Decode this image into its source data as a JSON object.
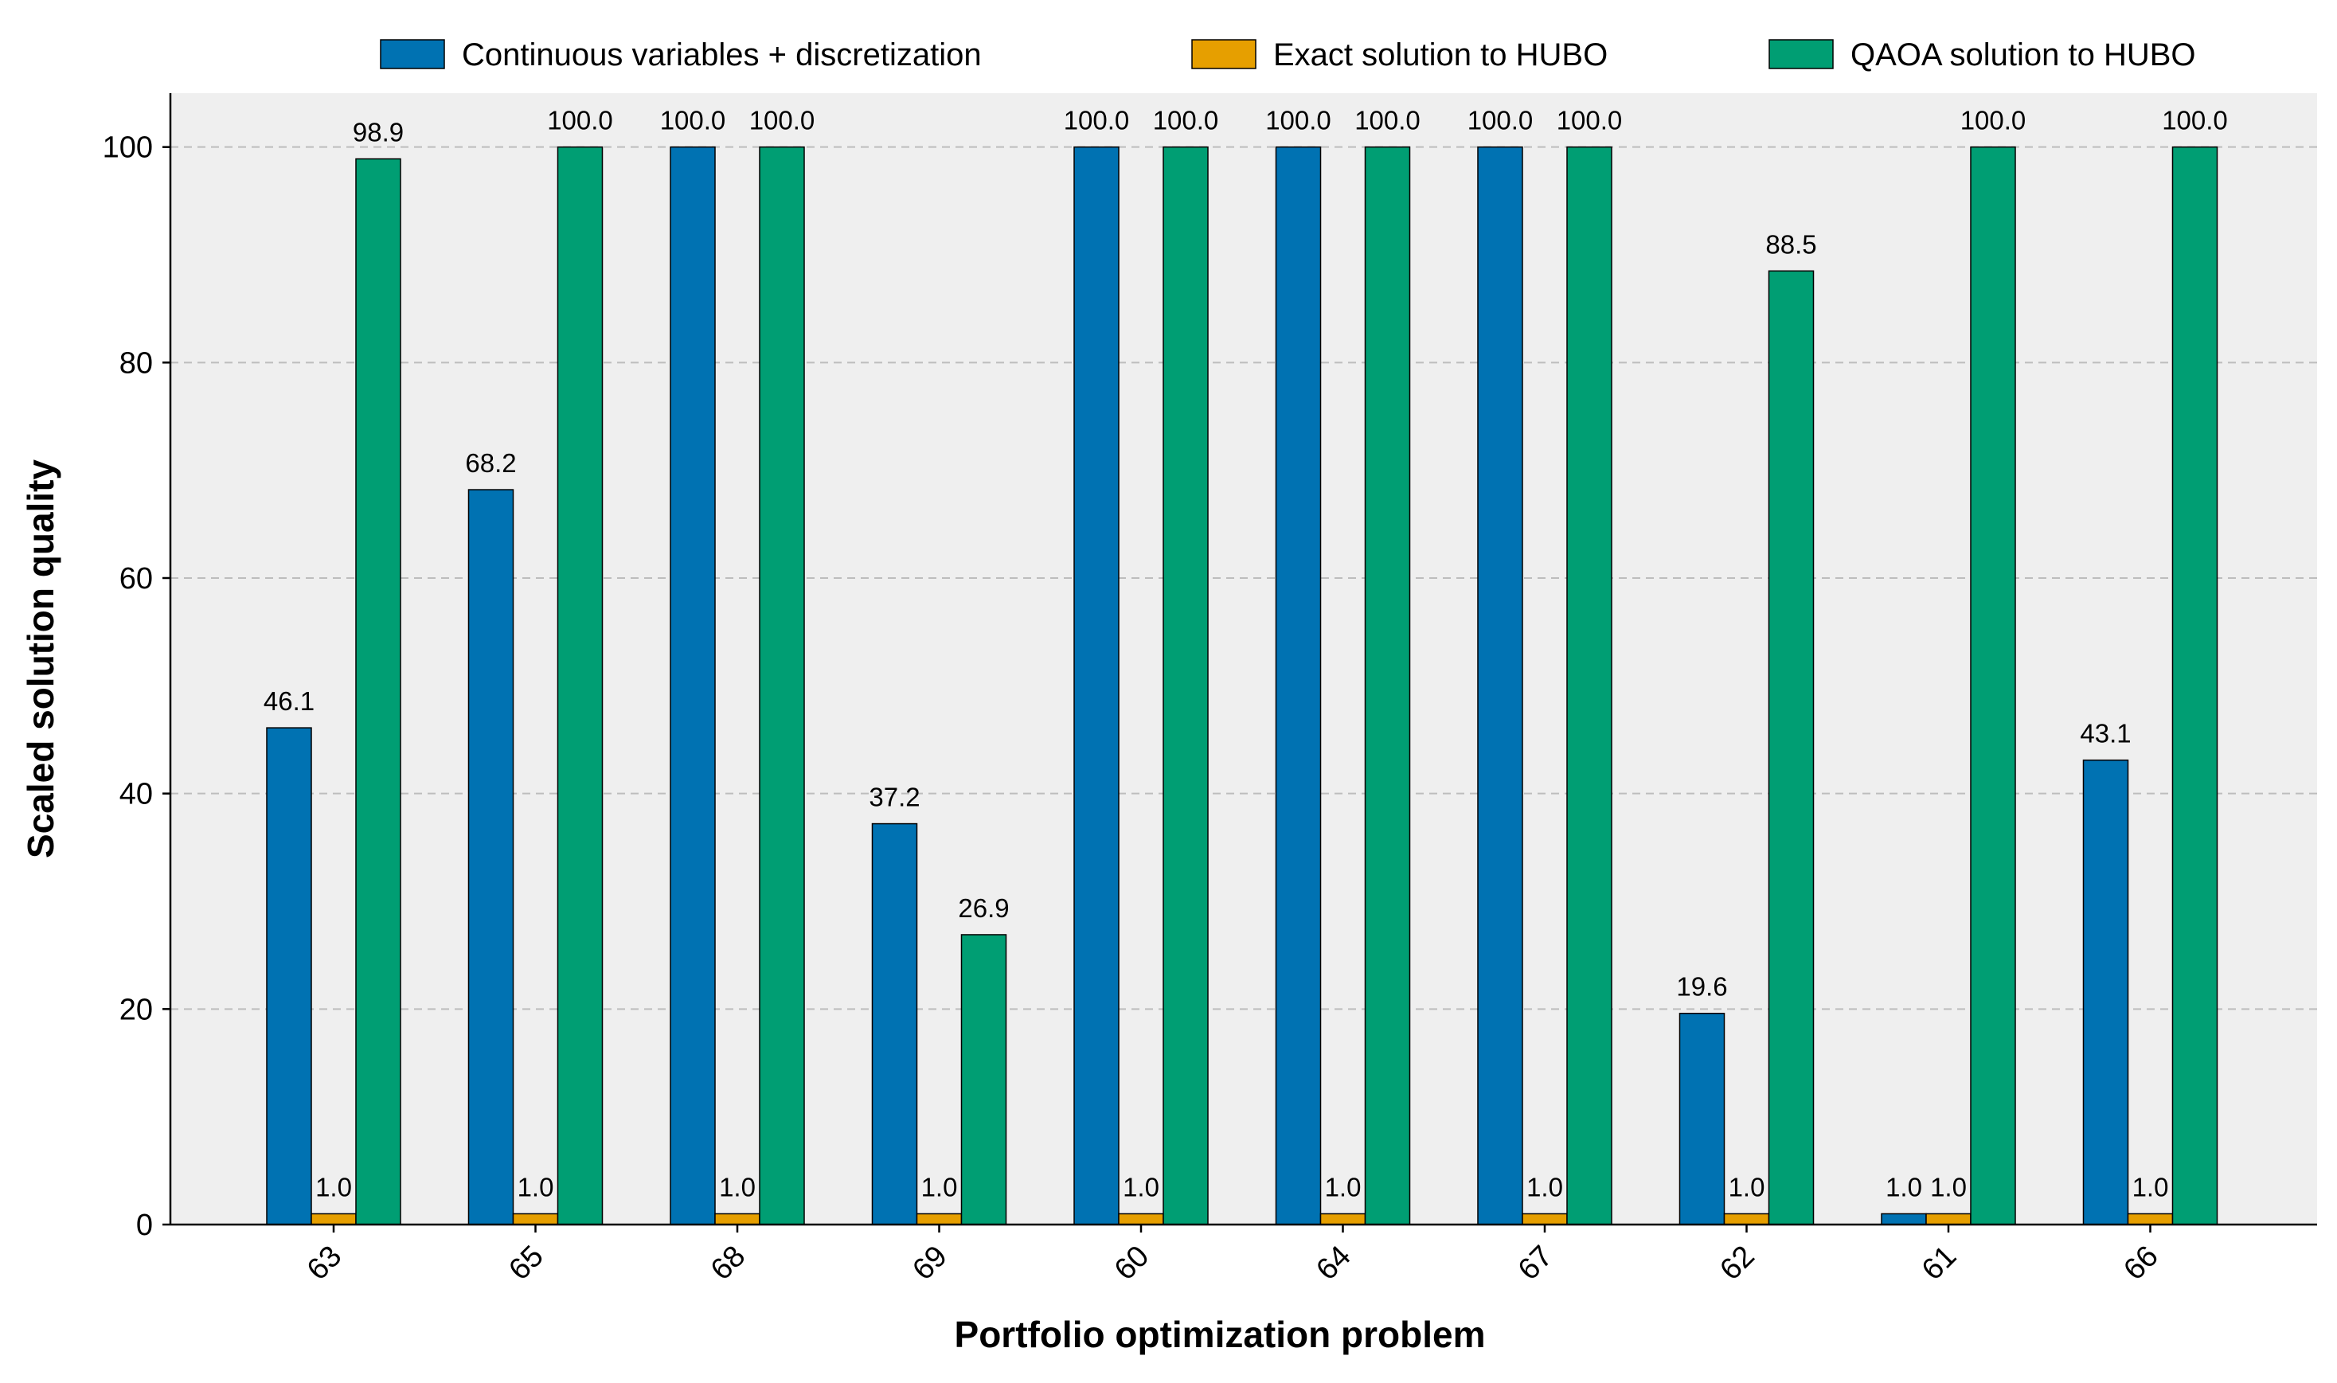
{
  "chart_data": {
    "type": "bar",
    "title": "",
    "xlabel": "Portfolio optimization problem",
    "ylabel": "Scaled solution quality",
    "categories": [
      "63",
      "65",
      "68",
      "69",
      "60",
      "64",
      "67",
      "62",
      "61",
      "66"
    ],
    "ylim": [
      0,
      105
    ],
    "yticks": [
      "0",
      "20",
      "40",
      "60",
      "80",
      "100"
    ],
    "grid": "horizontal dashed",
    "legend_placement": "top",
    "series": [
      {
        "name": "Continuous variables + discretization",
        "color": "#0072b2",
        "values": [
          46.1,
          68.2,
          100.0,
          37.2,
          100.0,
          100.0,
          100.0,
          19.6,
          1.0,
          43.1
        ],
        "labels": [
          "46.1",
          "68.2",
          "100.0",
          "37.2",
          "100.0",
          "100.0",
          "100.0",
          "19.6",
          "1.0",
          "43.1"
        ]
      },
      {
        "name": "Exact solution to HUBO",
        "color": "#e69f00",
        "values": [
          1.0,
          1.0,
          1.0,
          1.0,
          1.0,
          1.0,
          1.0,
          1.0,
          1.0,
          1.0
        ],
        "labels": [
          "1.0",
          "1.0",
          "1.0",
          "1.0",
          "1.0",
          "1.0",
          "1.0",
          "1.0",
          "1.0",
          "1.0"
        ]
      },
      {
        "name": "QAOA solution to HUBO",
        "color": "#009e73",
        "values": [
          98.9,
          100.0,
          100.0,
          26.9,
          100.0,
          100.0,
          100.0,
          88.5,
          100.0,
          100.0
        ],
        "labels": [
          "98.9",
          "100.0",
          "100.0",
          "26.9",
          "100.0",
          "100.0",
          "100.0",
          "88.5",
          "100.0",
          "100.0"
        ]
      }
    ],
    "plot_background": "#efefef"
  }
}
